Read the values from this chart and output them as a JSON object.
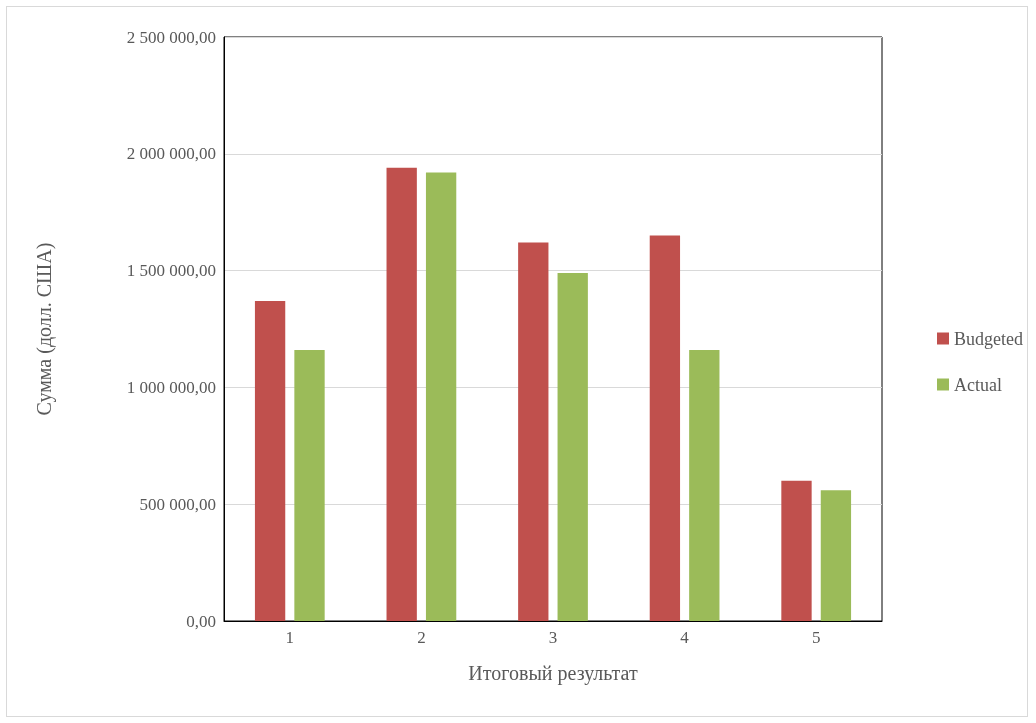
{
  "chart_data": {
    "type": "bar",
    "xlabel": "Итоговый результат",
    "ylabel": "Сумма (долл. США)",
    "categories": [
      "1",
      "2",
      "3",
      "4",
      "5"
    ],
    "series": [
      {
        "name": "Budgeted",
        "color": "#c0504d",
        "values": [
          1370000,
          1940000,
          1620000,
          1650000,
          600000
        ]
      },
      {
        "name": "Actual",
        "color": "#9bbb59",
        "values": [
          1160000,
          1920000,
          1490000,
          1160000,
          560000
        ]
      }
    ],
    "ylim": [
      0,
      2500000
    ],
    "yticks": [
      {
        "value": 0,
        "label": "0,00"
      },
      {
        "value": 500000,
        "label": "500 000,00"
      },
      {
        "value": 1000000,
        "label": "1 000 000,00"
      },
      {
        "value": 1500000,
        "label": "1 500 000,00"
      },
      {
        "value": 2000000,
        "label": "2 000 000,00"
      },
      {
        "value": 2500000,
        "label": "2 500 000,00"
      }
    ],
    "grid": "y",
    "legend": "right"
  }
}
